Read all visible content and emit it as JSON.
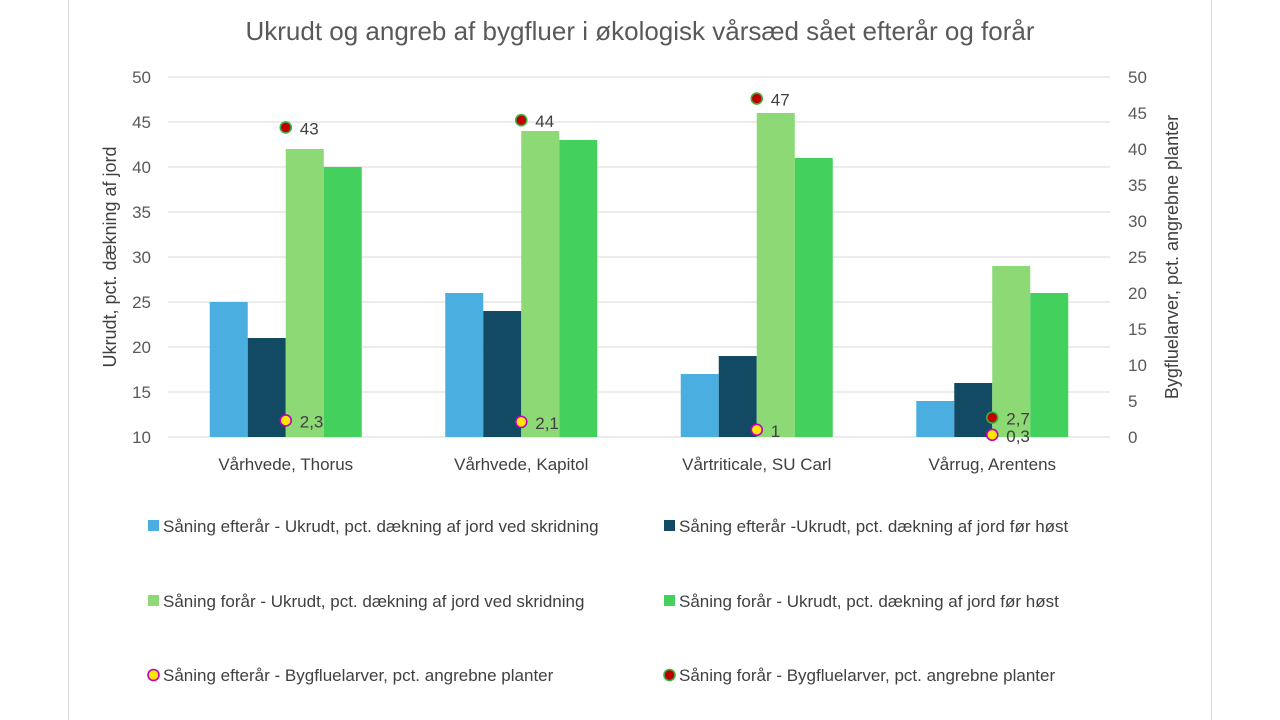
{
  "chart_data": {
    "type": "bar",
    "title": "Ukrudt og angreb af bygfluer i økologisk vårsæd sået efterår og forår",
    "categories": [
      "Vårhvede, Thorus",
      "Vårhvede, Kapitol",
      "Vårtriticale, SU Carl",
      "Vårrug, Arentens"
    ],
    "ylabel": "Ukrudt, pct. dækning af jord",
    "y2label": "Bygfluelarver, pct. angrebne planter",
    "ylim": [
      10,
      50
    ],
    "y2lim": [
      0,
      50
    ],
    "yticks": [
      "10",
      "15",
      "20",
      "25",
      "30",
      "35",
      "40",
      "45",
      "50"
    ],
    "y2ticks": [
      "0",
      "5",
      "10",
      "15",
      "20",
      "25",
      "30",
      "35",
      "40",
      "45",
      "50"
    ],
    "grid": true,
    "legend_position": "bottom",
    "series": [
      {
        "name": "Såning efterår - Ukrudt, pct. dækning af jord ved skridning",
        "type": "bar",
        "axis": "left",
        "color": "#4aaee0",
        "values": [
          25,
          26,
          17,
          14
        ]
      },
      {
        "name": "Såning efterår -Ukrudt, pct. dækning af jord før høst",
        "type": "bar",
        "axis": "left",
        "color": "#124a63",
        "values": [
          21,
          24,
          19,
          16
        ]
      },
      {
        "name": "Såning forår -  Ukrudt, pct. dækning af jord ved skridning",
        "type": "bar",
        "axis": "left",
        "color": "#8cd975",
        "values": [
          42,
          44,
          46,
          29
        ]
      },
      {
        "name": "Såning forår - Ukrudt, pct. dækning af jord før høst",
        "type": "bar",
        "axis": "left",
        "color": "#44d05c",
        "values": [
          40,
          43,
          41,
          26
        ]
      },
      {
        "name": "Såning efterår - Bygfluelarver, pct. angrebne planter",
        "type": "scatter",
        "axis": "right",
        "color": "#ffe600",
        "edge": "#c000c0",
        "values": [
          2.3,
          2.1,
          1,
          0.3
        ],
        "labels": [
          "2,3",
          "2,1",
          "1",
          "0,3"
        ]
      },
      {
        "name": "Såning forår - Bygfluelarver, pct. angrebne planter",
        "type": "scatter",
        "axis": "right",
        "color": "#c00000",
        "edge": "#3cb043",
        "values": [
          43,
          44,
          47,
          2.7
        ],
        "labels": [
          "43",
          "44",
          "47",
          "2,7"
        ]
      }
    ]
  }
}
